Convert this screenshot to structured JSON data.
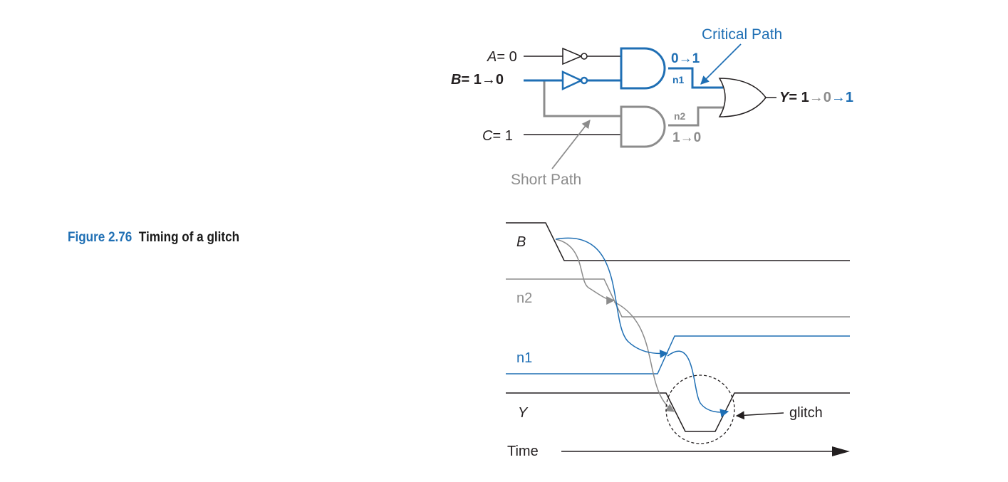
{
  "caption": {
    "number": "Figure 2.76",
    "title": "Timing of a glitch"
  },
  "circuit": {
    "input_a": {
      "name": "A",
      "value": "= 0"
    },
    "input_b": {
      "name": "B",
      "value": "= 1→0"
    },
    "input_c": {
      "name": "C",
      "value": "= 1"
    },
    "output_y": {
      "name": "Y",
      "eq": "= 1",
      "v1": "0",
      "v2": "1",
      "arrow": "→"
    },
    "n1_label": "n1",
    "n1_transition": "0→1",
    "n2_label": "n2",
    "n2_transition": "1→0",
    "critical_path_label": "Critical Path",
    "short_path_label": "Short Path"
  },
  "timing": {
    "signal_b": "B",
    "signal_n2": "n2",
    "signal_n1": "n1",
    "signal_y": "Y",
    "glitch_label": "glitch",
    "time_label": "Time"
  },
  "colors": {
    "blue": "#1f6fb4",
    "gray": "#8c8c8c",
    "black": "#231f20",
    "caption_blue": "#1f6fb4"
  }
}
